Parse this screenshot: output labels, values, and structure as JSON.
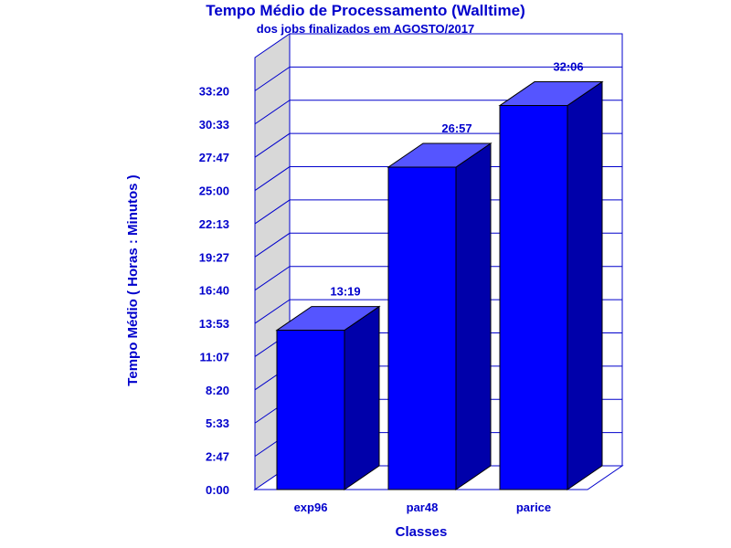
{
  "chart_data": {
    "type": "bar",
    "title": "Tempo Médio de Processamento (Walltime)",
    "subtitle": "dos jobs finalizados em AGOSTO/2017",
    "xlabel": "Classes",
    "ylabel": "Tempo Médio ( Horas : Minutos )",
    "categories": [
      "exp96",
      "par48",
      "parice"
    ],
    "values": [
      13.3167,
      26.95,
      32.1
    ],
    "value_labels": [
      "13:19",
      "26:57",
      "32:06"
    ],
    "ylim": [
      0,
      36.1111
    ],
    "yticks": [
      0,
      2.7778,
      5.5556,
      8.3333,
      11.1111,
      13.8889,
      16.6667,
      19.4444,
      22.2222,
      25.0,
      27.7778,
      30.5556,
      33.3333
    ],
    "ytick_labels": [
      "0:00",
      "2:47",
      "5:33",
      "8:20",
      "11:07",
      "13:53",
      "16:40",
      "19:27",
      "22:13",
      "25:00",
      "27:47",
      "30:33",
      "33:20"
    ],
    "grid": true,
    "three_d": true,
    "colors": {
      "bar_front": "#0000ff",
      "bar_top": "#5555ff",
      "bar_side": "#0000aa",
      "text": "#0000cc",
      "axis": "#0000cc",
      "side_wall": "#d8d8d8"
    }
  }
}
